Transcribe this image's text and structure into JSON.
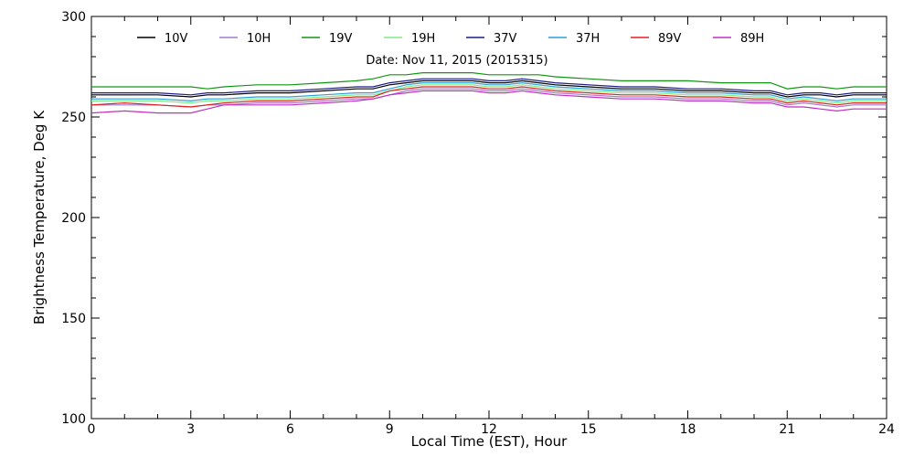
{
  "chart_data": {
    "type": "line",
    "title": "Date: Nov 11, 2015 (2015315)",
    "xlabel": "Local Time (EST), Hour",
    "ylabel": "Brightness Temperature, Deg K",
    "xlim": [
      0,
      24
    ],
    "ylim": [
      100,
      300
    ],
    "xticks": [
      0,
      3,
      6,
      9,
      12,
      15,
      18,
      21,
      24
    ],
    "yticks": [
      100,
      150,
      200,
      250,
      300
    ],
    "legend_position": "top",
    "x": [
      0,
      1,
      2,
      3,
      3.5,
      4,
      5,
      6,
      7,
      8,
      8.5,
      9,
      9.5,
      10,
      10.5,
      11,
      11.5,
      12,
      12.5,
      13,
      13.5,
      14,
      15,
      16,
      17,
      18,
      19,
      20,
      20.5,
      21,
      21.5,
      22,
      22.5,
      23,
      23.5,
      24
    ],
    "series": [
      {
        "name": "10V",
        "color": "#000000",
        "values": [
          261,
          261,
          261,
          260,
          261,
          261,
          262,
          262,
          263,
          264,
          264,
          266,
          267,
          268,
          268,
          268,
          268,
          267,
          267,
          268,
          267,
          266,
          265,
          264,
          264,
          263,
          263,
          262,
          262,
          260,
          261,
          261,
          260,
          261,
          261,
          261
        ]
      },
      {
        "name": "10H",
        "color": "#a07ad0",
        "values": [
          256,
          256,
          256,
          255,
          256,
          256,
          257,
          257,
          258,
          259,
          259,
          261,
          263,
          264,
          264,
          264,
          264,
          263,
          263,
          264,
          263,
          262,
          261,
          260,
          260,
          259,
          259,
          258,
          258,
          256,
          257,
          256,
          255,
          256,
          256,
          256
        ]
      },
      {
        "name": "19V",
        "color": "#139613",
        "values": [
          265,
          265,
          265,
          265,
          264,
          265,
          266,
          266,
          267,
          268,
          269,
          271,
          271,
          272,
          272,
          272,
          272,
          271,
          271,
          271,
          271,
          270,
          269,
          268,
          268,
          268,
          267,
          267,
          267,
          264,
          265,
          265,
          264,
          265,
          265,
          265
        ]
      },
      {
        "name": "19H",
        "color": "#84e884",
        "values": [
          258,
          258,
          258,
          257,
          258,
          258,
          259,
          259,
          260,
          261,
          261,
          263,
          265,
          266,
          266,
          266,
          266,
          265,
          265,
          266,
          265,
          264,
          263,
          262,
          262,
          261,
          261,
          260,
          260,
          258,
          259,
          258,
          257,
          258,
          258,
          258
        ]
      },
      {
        "name": "37V",
        "color": "#1c1c88",
        "values": [
          262,
          262,
          262,
          261,
          262,
          262,
          263,
          263,
          264,
          265,
          265,
          267,
          268,
          269,
          269,
          269,
          269,
          268,
          268,
          269,
          268,
          267,
          266,
          265,
          265,
          264,
          264,
          263,
          263,
          261,
          262,
          262,
          261,
          262,
          262,
          262
        ]
      },
      {
        "name": "37H",
        "color": "#2b9fd6",
        "values": [
          259,
          259,
          259,
          258,
          259,
          259,
          260,
          260,
          261,
          262,
          262,
          264,
          266,
          267,
          267,
          267,
          267,
          266,
          266,
          267,
          266,
          265,
          264,
          263,
          263,
          262,
          262,
          261,
          261,
          259,
          260,
          259,
          258,
          259,
          259,
          259
        ]
      },
      {
        "name": "89V",
        "color": "#e02020",
        "values": [
          256,
          257,
          256,
          255,
          256,
          257,
          258,
          258,
          259,
          260,
          260,
          263,
          264,
          265,
          265,
          265,
          265,
          264,
          264,
          265,
          264,
          263,
          262,
          261,
          261,
          260,
          260,
          259,
          259,
          257,
          258,
          257,
          256,
          257,
          257,
          257
        ]
      },
      {
        "name": "89H",
        "color": "#c030c0",
        "values": [
          252,
          253,
          252,
          252,
          254,
          256,
          256,
          256,
          257,
          258,
          259,
          261,
          262,
          263,
          263,
          263,
          263,
          262,
          262,
          263,
          262,
          261,
          260,
          259,
          259,
          258,
          258,
          257,
          257,
          255,
          255,
          254,
          253,
          254,
          254,
          254
        ]
      }
    ]
  }
}
